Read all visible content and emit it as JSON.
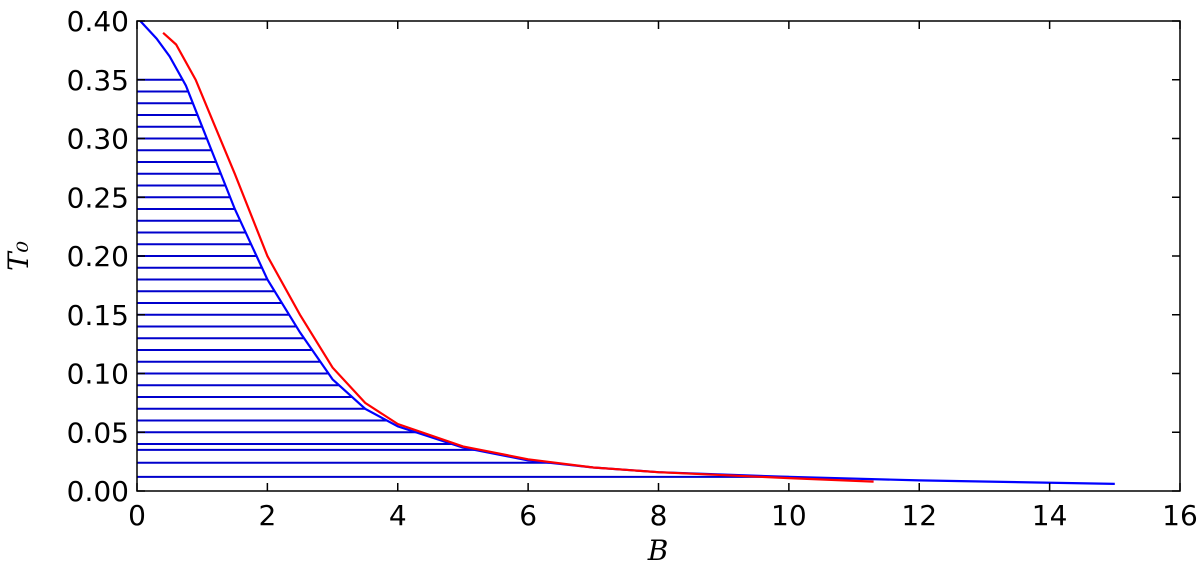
{
  "chart_data": {
    "type": "line",
    "xlabel": "B",
    "ylabel": "T₀",
    "xlim": [
      0,
      16
    ],
    "ylim": [
      0,
      0.4
    ],
    "xticks": [
      0,
      2,
      4,
      6,
      8,
      10,
      12,
      14,
      16
    ],
    "yticks": [
      {
        "value": 0,
        "label": "0.00"
      },
      {
        "value": 0.05,
        "label": "0.05"
      },
      {
        "value": 0.1,
        "label": "0.10"
      },
      {
        "value": 0.15,
        "label": "0.15"
      },
      {
        "value": 0.2,
        "label": "0.20"
      },
      {
        "value": 0.25,
        "label": "0.25"
      },
      {
        "value": 0.3,
        "label": "0.30"
      },
      {
        "value": 0.35,
        "label": "0.35"
      },
      {
        "value": 0.4,
        "label": "0.40"
      }
    ],
    "series": [
      {
        "color": "#0000ff",
        "x": [
          0.05,
          0.3,
          0.5,
          0.75,
          1.0,
          1.25,
          1.5,
          2.0,
          2.5,
          3.0,
          3.5,
          4.0,
          5.0,
          6.0,
          7.0,
          8.0,
          10.0,
          12.0,
          15.0
        ],
        "values": [
          0.4,
          0.385,
          0.37,
          0.345,
          0.31,
          0.275,
          0.24,
          0.18,
          0.135,
          0.095,
          0.07,
          0.055,
          0.037,
          0.026,
          0.02,
          0.016,
          0.012,
          0.009,
          0.006
        ]
      },
      {
        "color": "#ff0000",
        "x": [
          0.4,
          0.6,
          0.9,
          1.2,
          1.5,
          2.0,
          2.5,
          3.0,
          3.5,
          4.0,
          5.0,
          6.0,
          7.0,
          8.0,
          10.0,
          11.3
        ],
        "values": [
          0.39,
          0.38,
          0.35,
          0.31,
          0.27,
          0.2,
          0.15,
          0.105,
          0.075,
          0.057,
          0.038,
          0.027,
          0.02,
          0.016,
          0.011,
          0.008
        ]
      }
    ],
    "hlines": {
      "color": "#0000cc",
      "levels": [
        0.35,
        0.34,
        0.33,
        0.32,
        0.31,
        0.3,
        0.29,
        0.28,
        0.27,
        0.26,
        0.25,
        0.24,
        0.23,
        0.22,
        0.21,
        0.2,
        0.19,
        0.18,
        0.17,
        0.16,
        0.15,
        0.14,
        0.13,
        0.12,
        0.11,
        0.1,
        0.09,
        0.08,
        0.07,
        0.06,
        0.05,
        0.04,
        0.035,
        0.024,
        0.012
      ]
    }
  }
}
